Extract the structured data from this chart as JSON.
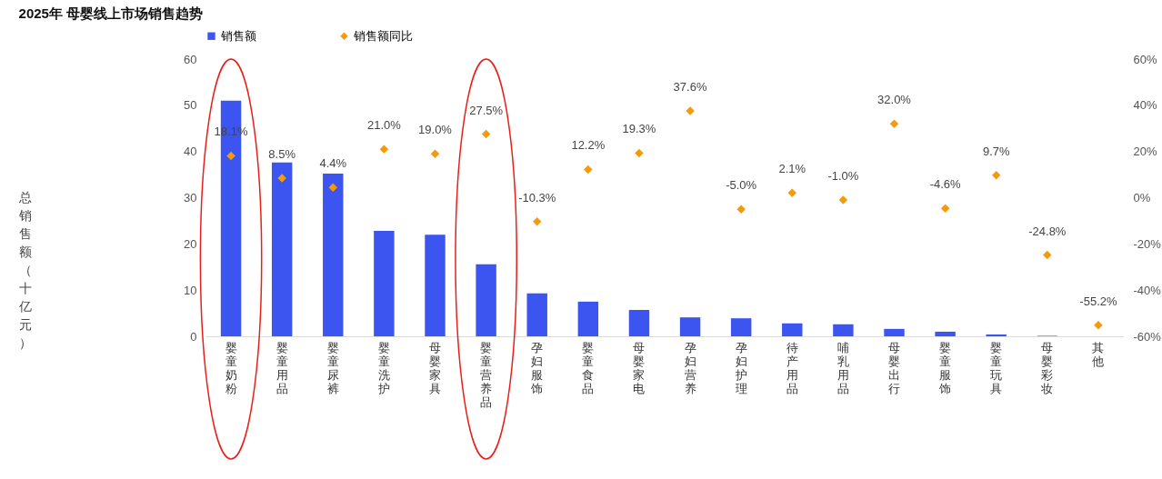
{
  "chart_data": {
    "type": "bar",
    "title": "2025年 母婴线上市场销售趋势",
    "categories": [
      "婴童奶粉",
      "婴童用品",
      "婴童尿裤",
      "婴童洗护",
      "母婴家具",
      "婴童营养品",
      "孕妇服饰",
      "婴童食品",
      "母婴家电",
      "孕妇营养",
      "孕妇护理",
      "待产用品",
      "哺乳用品",
      "母婴出行",
      "婴童服饰",
      "婴童玩具",
      "母婴彩妆",
      "其他"
    ],
    "series": [
      {
        "name": "销售额",
        "color": "#3d55f0",
        "values": [
          51.0,
          37.6,
          35.2,
          22.8,
          22.0,
          15.6,
          9.3,
          7.5,
          5.7,
          4.1,
          3.9,
          2.8,
          2.6,
          1.6,
          1.0,
          0.4,
          0.1,
          0
        ]
      },
      {
        "name": "销售额同比",
        "type": "scatter",
        "axis": "y2",
        "color": "#f59a0a",
        "marker": "diamond",
        "values": [
          18.1,
          8.5,
          4.4,
          21.0,
          19.0,
          27.5,
          -10.3,
          12.2,
          19.3,
          37.6,
          -5.0,
          2.1,
          -1.0,
          32.0,
          -4.6,
          9.7,
          -24.8,
          -55.2
        ],
        "value_labels": [
          "18.1%",
          "8.5%",
          "4.4%",
          "21.0%",
          "19.0%",
          "27.5%",
          "-10.3%",
          "12.2%",
          "19.3%",
          "37.6%",
          "-5.0%",
          "2.1%",
          "-1.0%",
          "32.0%",
          "-4.6%",
          "9.7%",
          "-24.8%",
          "-55.2%"
        ]
      }
    ],
    "ylabel": "总销售额（十亿元）",
    "ylim": [
      0,
      60
    ],
    "yticks": [
      0,
      10,
      20,
      30,
      40,
      50,
      60
    ],
    "y2lim": [
      -60,
      60
    ],
    "y2ticks": [
      {
        "value": -60,
        "label": "-60%"
      },
      {
        "value": -40,
        "label": "-40%"
      },
      {
        "value": -20,
        "label": "-20%"
      },
      {
        "value": 0,
        "label": "0%"
      },
      {
        "value": 20,
        "label": "20%"
      },
      {
        "value": 40,
        "label": "40%"
      },
      {
        "value": 60,
        "label": "60%"
      }
    ],
    "legend": "top",
    "grid": false
  }
}
